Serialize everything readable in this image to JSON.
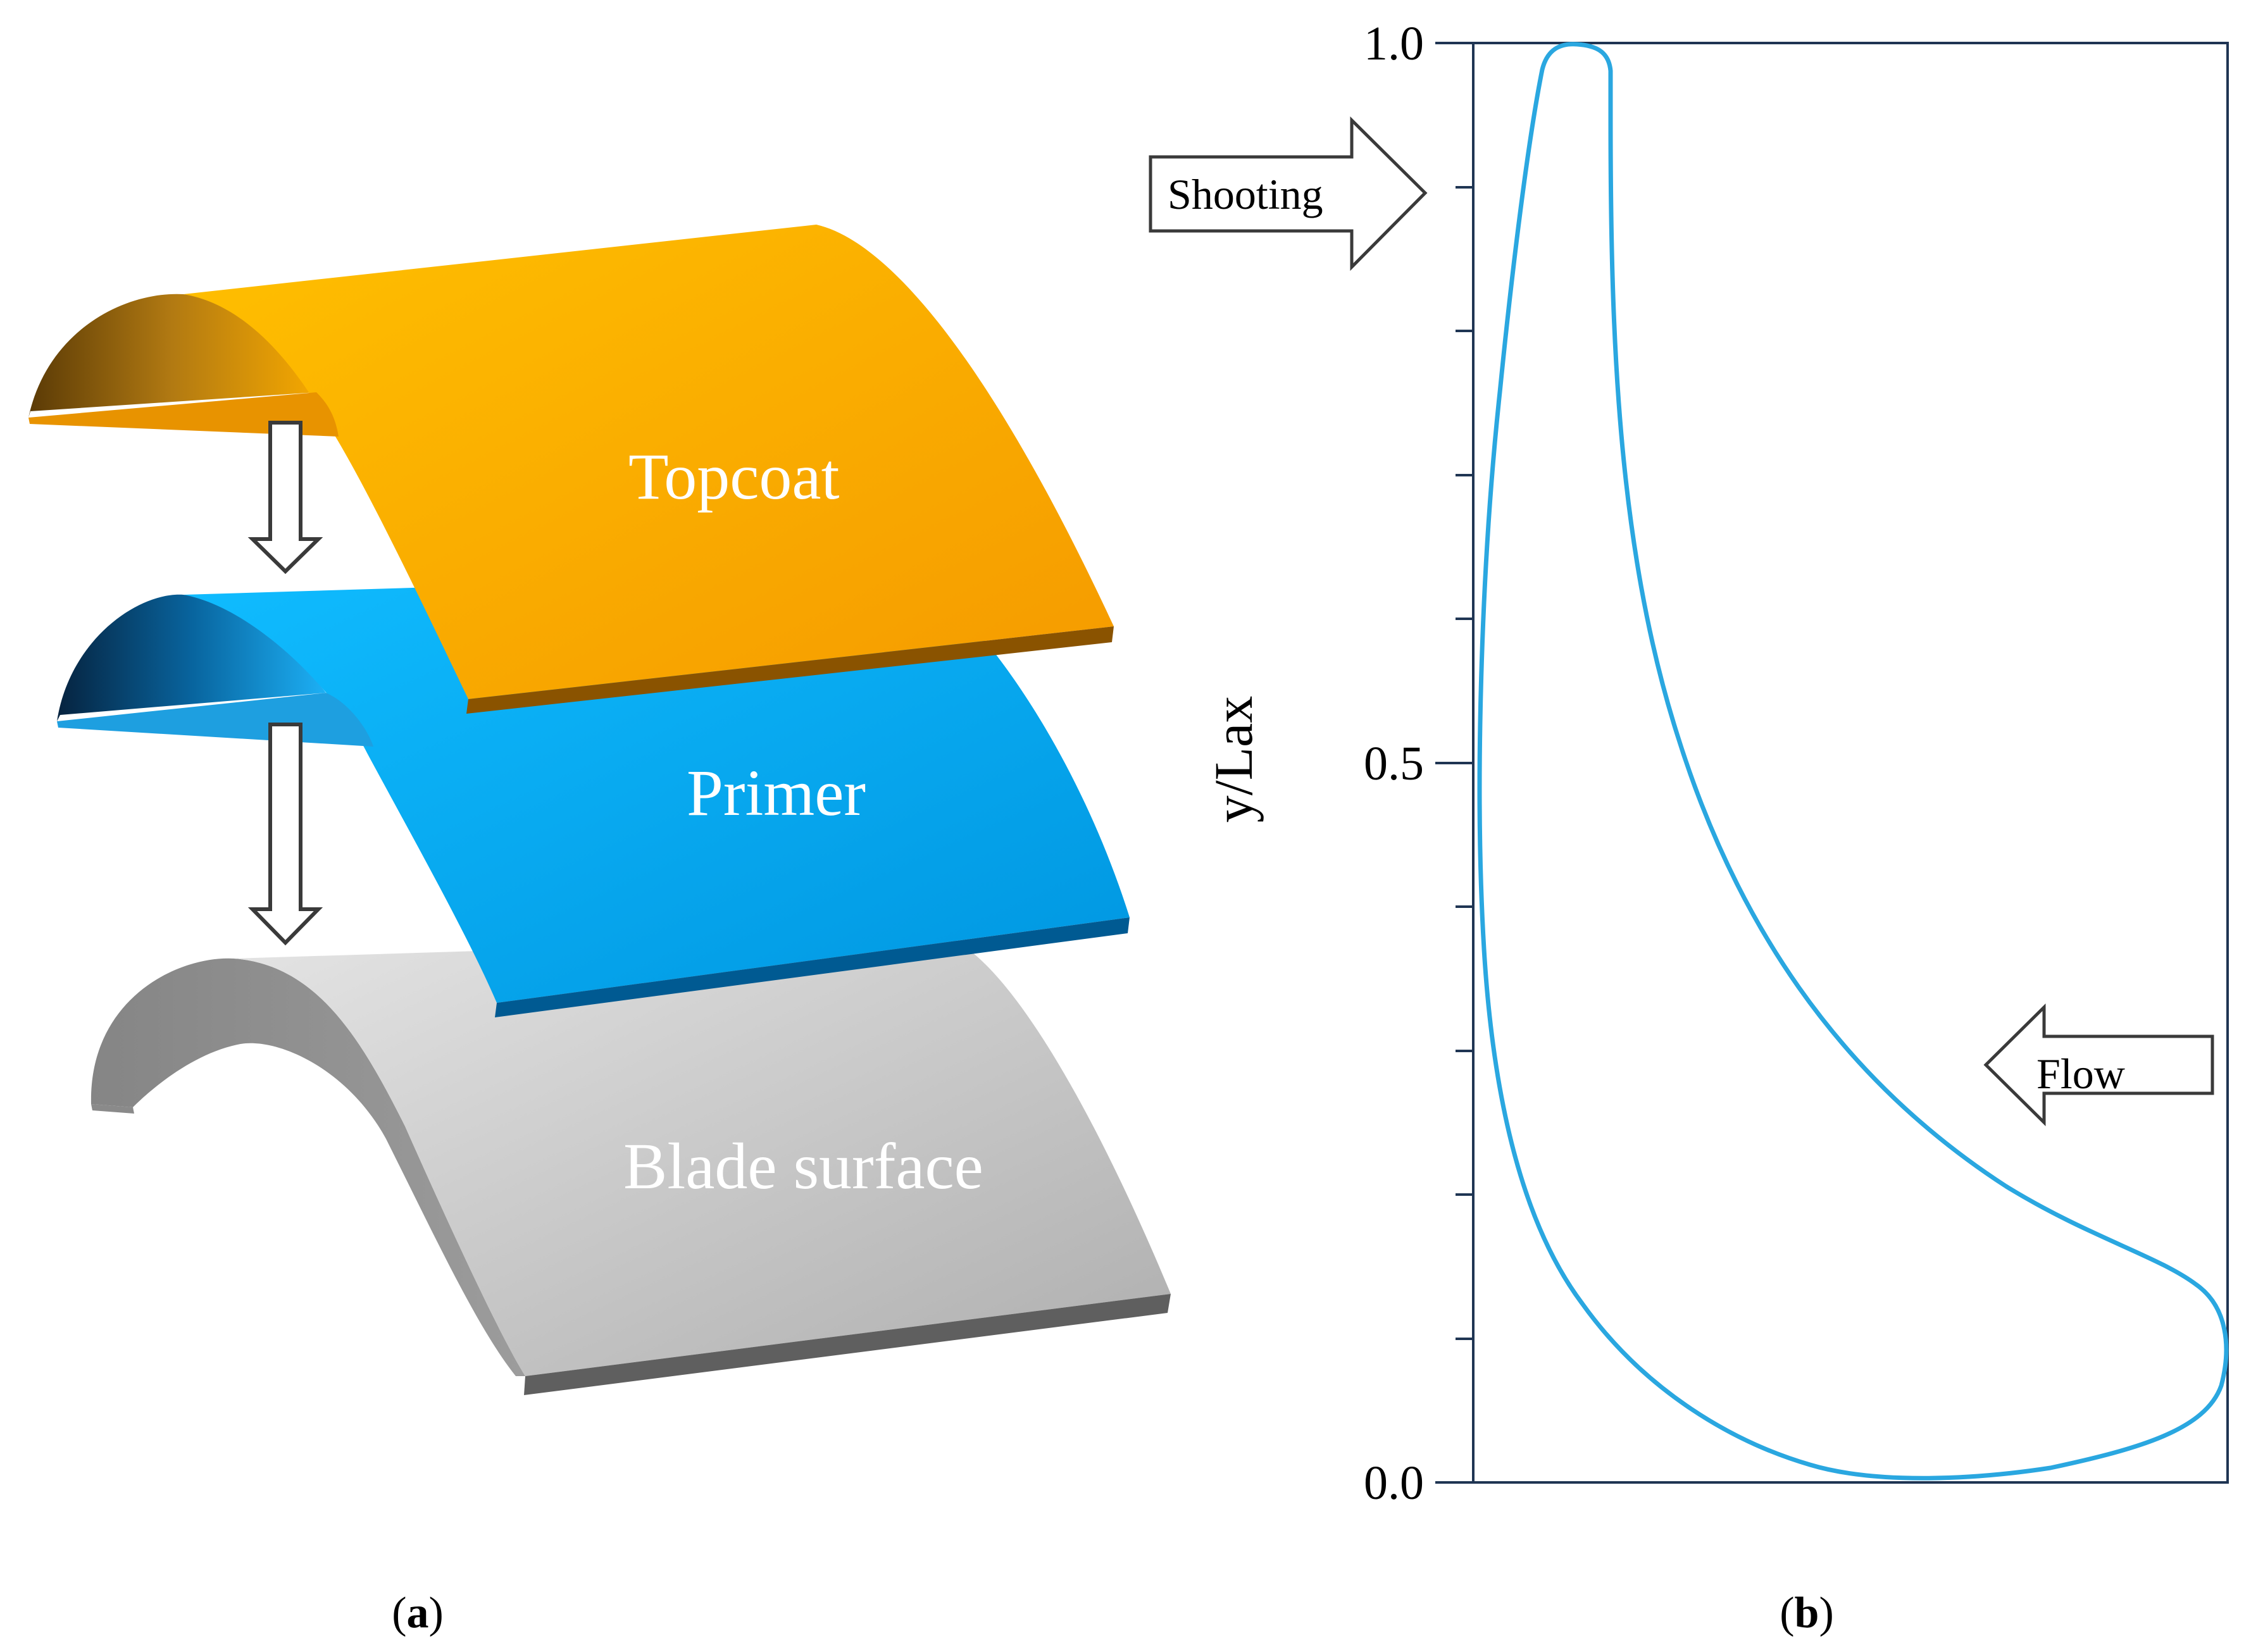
{
  "panel_a": {
    "layers": {
      "topcoat": "Topcoat",
      "primer": "Primer",
      "blade": "Blade surface"
    },
    "caption_letter": "a"
  },
  "panel_b": {
    "y_axis_title": "y/Lax",
    "ticks": {
      "t0": "0.0",
      "t05": "0.5",
      "t1": "1.0"
    },
    "shooting_label": "Shooting",
    "flow_label": "Flow",
    "caption_letter": "b"
  },
  "colors": {
    "topcoat": "#F5A300",
    "primer": "#00A9F0",
    "blade": "#C4C4C4",
    "profile": "#2AA7E0",
    "axis": "#1F3553"
  }
}
